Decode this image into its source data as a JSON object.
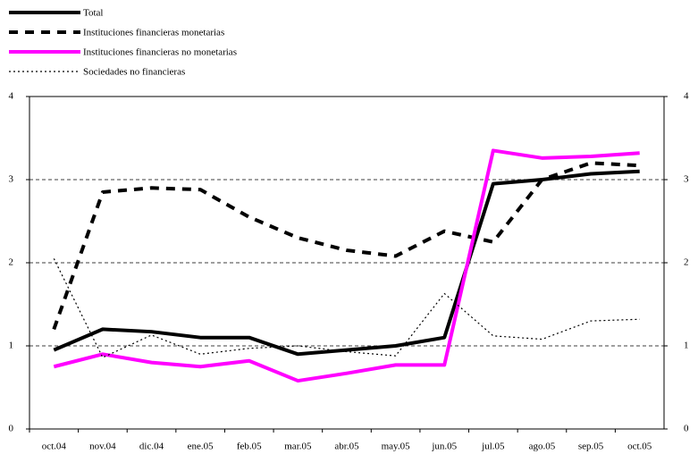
{
  "chart_data": {
    "type": "line",
    "categories": [
      "oct.04",
      "nov.04",
      "dic.04",
      "ene.05",
      "feb.05",
      "mar.05",
      "abr.05",
      "may.05",
      "jun.05",
      "jul.05",
      "ago.05",
      "sep.05",
      "oct.05"
    ],
    "series": [
      {
        "name": "Total",
        "color": "#000000",
        "width": 4,
        "dash": "none",
        "values": [
          0.95,
          1.2,
          1.17,
          1.1,
          1.1,
          0.9,
          0.95,
          1.0,
          1.1,
          2.95,
          3.0,
          3.07,
          3.1
        ]
      },
      {
        "name": "Instituciones financieras monetarias",
        "color": "#000000",
        "width": 4,
        "dash": "10,8",
        "values": [
          1.2,
          2.85,
          2.9,
          2.88,
          2.55,
          2.3,
          2.15,
          2.08,
          2.38,
          2.25,
          3.0,
          3.2,
          3.17
        ]
      },
      {
        "name": "Instituciones financieras no monetarias",
        "color": "#ff00ff",
        "width": 4,
        "dash": "none",
        "values": [
          0.75,
          0.9,
          0.8,
          0.75,
          0.82,
          0.58,
          0.67,
          0.77,
          0.77,
          3.35,
          3.26,
          3.28,
          3.32
        ]
      },
      {
        "name": "Sociedades no financieras",
        "color": "#000000",
        "width": 1.2,
        "dash": "2,3",
        "values": [
          2.05,
          0.86,
          1.13,
          0.9,
          0.97,
          1.0,
          0.93,
          0.88,
          1.63,
          1.12,
          1.08,
          1.3,
          1.32
        ]
      }
    ],
    "ylim": [
      0,
      4
    ],
    "yticks": [
      0,
      1,
      2,
      3,
      4
    ],
    "y2lim": [
      0,
      4
    ],
    "y2ticks": [
      0,
      1,
      2,
      3,
      4
    ],
    "grid": true,
    "legend": "top-left"
  }
}
